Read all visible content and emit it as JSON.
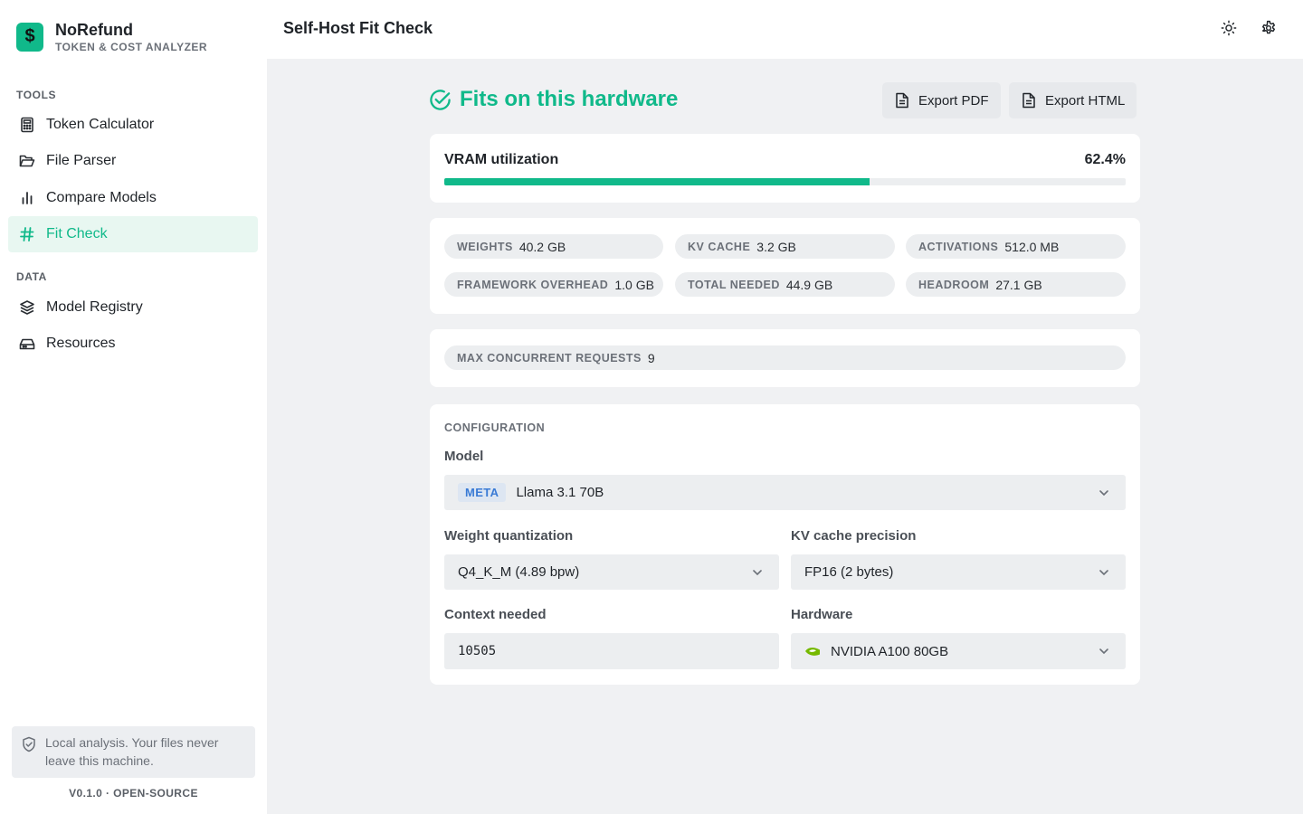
{
  "brand": {
    "name": "NoRefund",
    "subtitle": "TOKEN & COST ANALYZER",
    "logo_symbol": "$",
    "accent": "#10b98a"
  },
  "sidebar": {
    "sections": [
      {
        "label": "TOOLS",
        "items": [
          {
            "label": "Token Calculator",
            "icon": "calculator-icon",
            "active": false
          },
          {
            "label": "File Parser",
            "icon": "folder-open-icon",
            "active": false
          },
          {
            "label": "Compare Models",
            "icon": "bar-chart-icon",
            "active": false
          },
          {
            "label": "Fit Check",
            "icon": "hash-icon",
            "active": true
          }
        ]
      },
      {
        "label": "DATA",
        "items": [
          {
            "label": "Model Registry",
            "icon": "layers-icon",
            "active": false
          },
          {
            "label": "Resources",
            "icon": "hard-drive-icon",
            "active": false
          }
        ]
      }
    ],
    "privacy_note": "Local analysis. Your files never leave this machine.",
    "version": "V0.1.0 · OPEN-SOURCE"
  },
  "header": {
    "title": "Self-Host Fit Check",
    "theme_icon": "sun-icon",
    "settings_icon": "gear-icon"
  },
  "result": {
    "status": "Fits on this hardware",
    "export_pdf": "Export PDF",
    "export_html": "Export HTML",
    "vram": {
      "label": "VRAM utilization",
      "value": "62.4%",
      "fraction": 0.624
    },
    "stats": [
      {
        "key": "WEIGHTS",
        "value": "40.2 GB"
      },
      {
        "key": "KV CACHE",
        "value": "3.2 GB"
      },
      {
        "key": "ACTIVATIONS",
        "value": "512.0 MB"
      },
      {
        "key": "FRAMEWORK OVERHEAD",
        "value": "1.0 GB"
      },
      {
        "key": "TOTAL NEEDED",
        "value": "44.9 GB"
      },
      {
        "key": "HEADROOM",
        "value": "27.1 GB"
      }
    ],
    "concurrency": {
      "key": "MAX CONCURRENT REQUESTS",
      "value": "9"
    }
  },
  "config": {
    "title": "CONFIGURATION",
    "model": {
      "label": "Model",
      "badge": "META",
      "value": "Llama 3.1 70B"
    },
    "weight_quant": {
      "label": "Weight quantization",
      "value": "Q4_K_M (4.89 bpw)"
    },
    "kv_precision": {
      "label": "KV cache precision",
      "value": "FP16 (2 bytes)"
    },
    "context": {
      "label": "Context needed",
      "value": "10505"
    },
    "hardware": {
      "label": "Hardware",
      "value": "NVIDIA A100 80GB",
      "icon": "nvidia-icon"
    }
  }
}
